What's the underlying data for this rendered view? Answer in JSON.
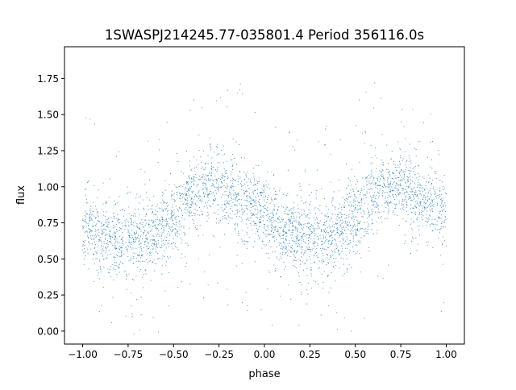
{
  "chart_data": {
    "type": "scatter",
    "title": "1SWASPJ214245.77-035801.4 Period 356116.0s",
    "xlabel": "phase",
    "ylabel": "flux",
    "xlim": [
      -1.1,
      1.1
    ],
    "ylim": [
      -0.09,
      1.97
    ],
    "xticks": [
      -1.0,
      -0.75,
      -0.5,
      -0.25,
      0.0,
      0.25,
      0.5,
      0.75,
      1.0
    ],
    "xtick_labels": [
      "−1.00",
      "−0.75",
      "−0.50",
      "−0.25",
      "0.00",
      "0.25",
      "0.50",
      "0.75",
      "1.00"
    ],
    "yticks": [
      0.0,
      0.25,
      0.5,
      0.75,
      1.0,
      1.25,
      1.5,
      1.75
    ],
    "ytick_labels": [
      "0.00",
      "0.25",
      "0.50",
      "0.75",
      "1.00",
      "1.25",
      "1.50",
      "1.75"
    ],
    "grid": false,
    "marker_color": "#1f77b4",
    "trend": {
      "phase": [
        -1.0,
        -0.9,
        -0.8,
        -0.7,
        -0.6,
        -0.5,
        -0.4,
        -0.3,
        -0.2,
        -0.1,
        0.0,
        0.1,
        0.2,
        0.3,
        0.4,
        0.5,
        0.6,
        0.7,
        0.8,
        0.9,
        1.0
      ],
      "flux": [
        0.74,
        0.68,
        0.63,
        0.62,
        0.68,
        0.8,
        0.92,
        1.01,
        0.98,
        0.88,
        0.8,
        0.68,
        0.63,
        0.62,
        0.68,
        0.8,
        0.93,
        1.01,
        0.98,
        0.88,
        0.82
      ],
      "scatter": 0.13
    }
  }
}
